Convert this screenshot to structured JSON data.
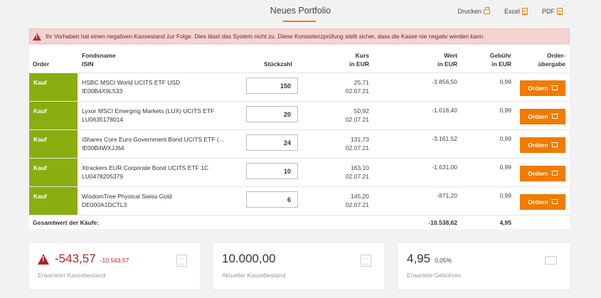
{
  "header": {
    "title": "Neues Portfolio",
    "actions": [
      {
        "label": "Drucken",
        "icon": "printer-icon"
      },
      {
        "label": "Excel",
        "icon": "excel-file-icon"
      },
      {
        "label": "PDF",
        "icon": "pdf-file-icon"
      }
    ]
  },
  "alert": {
    "text": "Ihr Vorhaben hat einen negativen Kassestand zur Folge. Dies lässt das System nicht zu. Diese Konsistenzprüfung stellt sicher, dass die Kasse nie negativ werden kann.",
    "icon": "warning-icon",
    "color": "#c0272d"
  },
  "table": {
    "headers": {
      "order": "Order",
      "fondsname": "Fondsname",
      "isin": "ISIN",
      "stueckzahl": "Stückzahl",
      "kurs_1": "Kurs",
      "kurs_2": "in EUR",
      "wert_1": "Wert",
      "wert_2": "in EUR",
      "gebuehr_1": "Gebühr",
      "gebuehr_2": "in EUR",
      "order_uebergabe_1": "Order-",
      "order_uebergabe_2": "übergabe"
    },
    "rows": [
      {
        "type": "Kauf",
        "name": "HSBC MSCI World UCITS ETF USD",
        "isin": "IE00B4X9L533",
        "qty": "150",
        "kurs": "25,71",
        "date": "02.07.21",
        "wert": "-3.856,50",
        "fee": "0,99",
        "button": "Ordern"
      },
      {
        "type": "Kauf",
        "name": "Lyxor MSCI Emerging Markets (LUX) UCITS ETF",
        "isin": "LU0635178014",
        "qty": "20",
        "kurs": "50,92",
        "date": "02.07.21",
        "wert": "-1.018,40",
        "fee": "0,99",
        "button": "Ordern"
      },
      {
        "type": "Kauf",
        "name": "iShares Core Euro Government Bond UCITS ETF (...",
        "isin": "IE00B4WXJJ64",
        "qty": "24",
        "kurs": "131,73",
        "date": "02.07.21",
        "wert": "-3.161,52",
        "fee": "0,99",
        "button": "Ordern"
      },
      {
        "type": "Kauf",
        "name": "Xtrackers EUR Corporate Bond UCITS ETF 1C",
        "isin": "LU0478205379",
        "qty": "10",
        "kurs": "163,10",
        "date": "02.07.21",
        "wert": "-1.631,00",
        "fee": "0,99",
        "button": "Ordern"
      },
      {
        "type": "Kauf",
        "name": "WisdomTree Physical Swiss Gold",
        "isin": "DE000A1DCTL3",
        "qty": "6",
        "kurs": "145,20",
        "date": "02.07.21",
        "wert": "-871,20",
        "fee": "0,99",
        "button": "Ordern"
      }
    ],
    "total": {
      "label": "Gesamtwert der Käufe:",
      "wert": "-10.538,62",
      "fee": "4,95"
    }
  },
  "cards": [
    {
      "value": "-543,57",
      "sub": "-10.543,57",
      "label": "Erwarteter Kassebestand",
      "icon": "calculator-icon"
    },
    {
      "value": "10.000,00",
      "label": "Aktueller Kassebestand",
      "icon": "calculator-icon"
    },
    {
      "value": "4,95",
      "sub": "0,05%",
      "label": "Erwartete Gebühren",
      "icon": "wallet-icon"
    }
  ],
  "colors": {
    "accent": "#f07b00",
    "kauf": "#8aad10",
    "negative": "#b3222a"
  }
}
